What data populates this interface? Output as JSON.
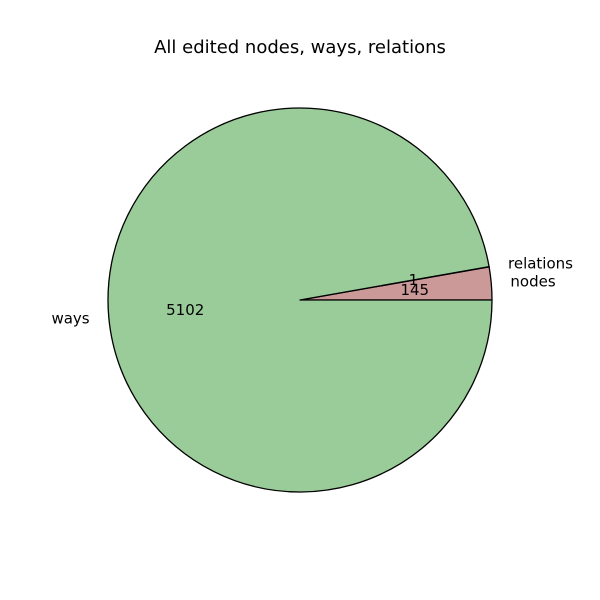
{
  "chart_data": {
    "type": "pie",
    "title": "All edited nodes, ways, relations",
    "start_angle": 0,
    "direction": "counterclockwise",
    "slices": [
      {
        "name": "nodes",
        "value": 145,
        "color": "#cc9999"
      },
      {
        "name": "relations",
        "value": 1,
        "color": "#9999cc"
      },
      {
        "name": "ways",
        "value": 5102,
        "color": "#99cc99"
      }
    ],
    "edge_color": "#000000"
  }
}
